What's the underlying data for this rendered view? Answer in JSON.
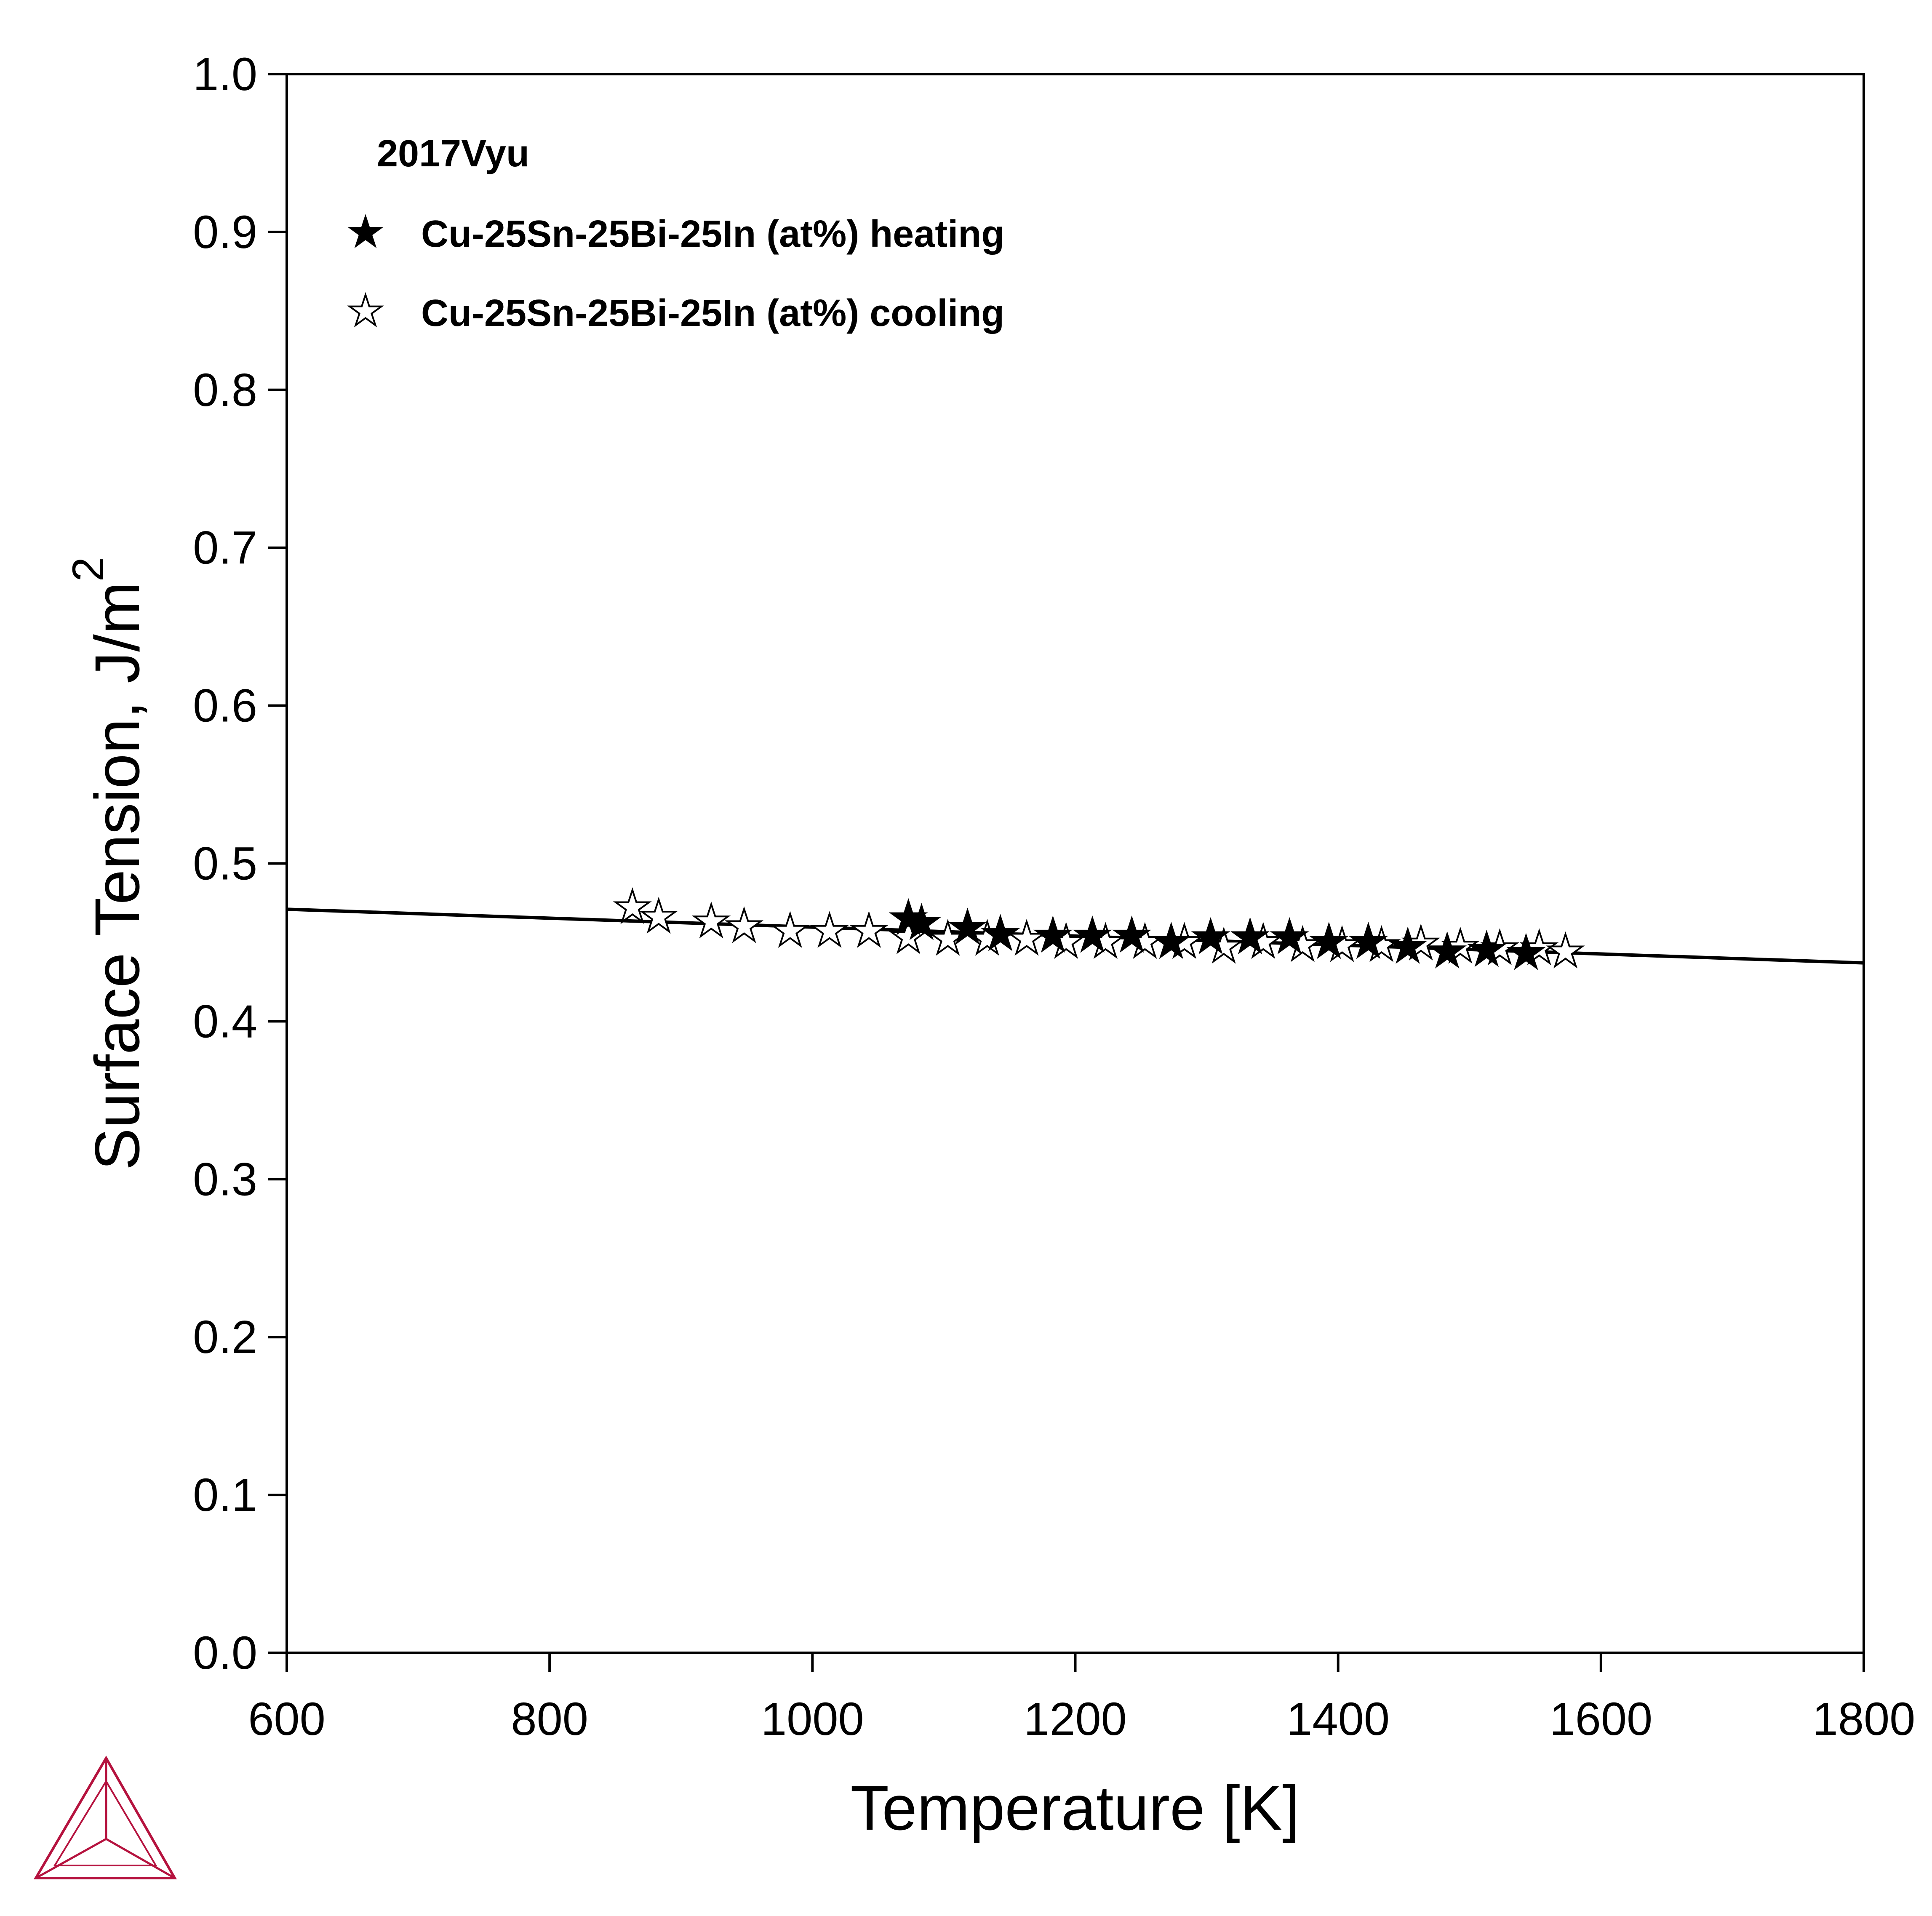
{
  "chart_data": {
    "type": "scatter",
    "xlabel": "Temperature [K]",
    "ylabel": "Surface Tension, J/m",
    "ylabel_sup": "2",
    "xlim": [
      600,
      1800
    ],
    "ylim": [
      0.0,
      1.0
    ],
    "x_ticks": [
      "600",
      "800",
      "1000",
      "1200",
      "1400",
      "1600",
      "1800"
    ],
    "y_ticks": [
      "0.0",
      "0.1",
      "0.2",
      "0.3",
      "0.4",
      "0.5",
      "0.6",
      "0.7",
      "0.8",
      "0.9",
      "1.0"
    ],
    "grid": false,
    "legend_position": "top-left",
    "legend_title": "2017Vyu",
    "series": [
      {
        "name": "Cu-25Sn-25Bi-25In (at%) heating",
        "marker": "filled-star",
        "x": [
          1073,
          1083,
          1118,
          1143,
          1183,
          1213,
          1243,
          1273,
          1303,
          1333,
          1363,
          1393,
          1423,
          1453,
          1483,
          1513,
          1543
        ],
        "y": [
          0.465,
          0.462,
          0.459,
          0.455,
          0.454,
          0.454,
          0.454,
          0.45,
          0.453,
          0.453,
          0.453,
          0.45,
          0.45,
          0.447,
          0.444,
          0.445,
          0.443
        ]
      },
      {
        "name": "Cu-25Sn-25Bi-25In (at%) cooling",
        "marker": "open-star",
        "x": [
          863,
          883,
          923,
          948,
          983,
          1013,
          1043,
          1073,
          1103,
          1133,
          1163,
          1193,
          1223,
          1253,
          1283,
          1313,
          1343,
          1373,
          1403,
          1433,
          1463,
          1493,
          1523,
          1553,
          1573
        ],
        "y": [
          0.472,
          0.466,
          0.463,
          0.46,
          0.457,
          0.457,
          0.457,
          0.453,
          0.452,
          0.452,
          0.452,
          0.45,
          0.45,
          0.45,
          0.45,
          0.447,
          0.45,
          0.448,
          0.448,
          0.448,
          0.449,
          0.447,
          0.446,
          0.446,
          0.444
        ]
      },
      {
        "name": "",
        "type": "line",
        "x": [
          600,
          1800
        ],
        "y": [
          0.471,
          0.437
        ]
      }
    ]
  },
  "logo": {
    "color": "#b5123e"
  }
}
